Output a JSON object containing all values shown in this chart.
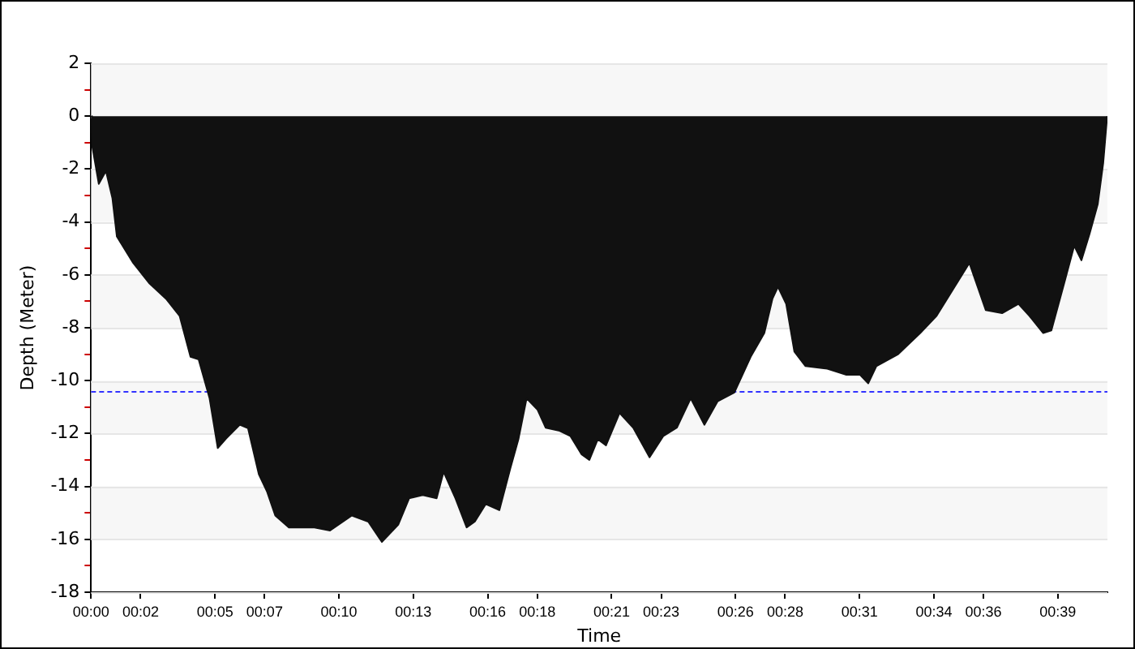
{
  "chart_data": {
    "type": "area",
    "xlabel": "Time",
    "ylabel": "Depth (Meter)",
    "x": [
      0,
      0.04,
      0.31,
      0.6,
      0.86,
      1.04,
      1.7,
      2.36,
      3.02,
      3.57,
      4.01,
      4.34,
      4.78,
      5.11,
      5.44,
      6.0,
      6.33,
      6.77,
      7.1,
      7.43,
      7.98,
      8.97,
      9.64,
      10.52,
      11.18,
      11.73,
      12.39,
      12.83,
      13.38,
      13.94,
      14.22,
      14.7,
      15.15,
      15.48,
      15.92,
      16.47,
      16.91,
      17.24,
      17.57,
      18.01,
      18.34,
      18.9,
      19.34,
      19.78,
      20.1,
      20.44,
      20.77,
      21.32,
      21.87,
      22.53,
      23.08,
      23.63,
      24.19,
      24.74,
      25.28,
      25.95,
      26.61,
      27.16,
      27.49,
      27.71,
      28.04,
      28.37,
      28.82,
      29.7,
      30.47,
      31.02,
      31.35,
      31.68,
      32.56,
      33.45,
      34.11,
      34.77,
      35.43,
      36.09,
      36.75,
      37.41,
      37.85,
      38.41,
      38.74,
      39.29,
      39.66,
      39.95,
      40.28,
      40.61,
      40.83,
      40.99
    ],
    "series": [
      {
        "color": "#111111",
        "values": [
          0,
          -1.1,
          -2.56,
          -2.07,
          -3.1,
          -4.55,
          -5.55,
          -6.33,
          -6.9,
          -7.55,
          -9.1,
          -9.2,
          -10.67,
          -12.55,
          -12.2,
          -11.67,
          -11.8,
          -13.55,
          -14.2,
          -15.1,
          -15.55,
          -15.55,
          -15.67,
          -15.1,
          -15.33,
          -16.1,
          -15.45,
          -14.45,
          -14.33,
          -14.45,
          -13.45,
          -14.45,
          -15.55,
          -15.33,
          -14.67,
          -14.9,
          -13.33,
          -12.22,
          -10.67,
          -11.1,
          -11.78,
          -11.9,
          -12.1,
          -12.78,
          -13.0,
          -12.22,
          -12.45,
          -11.22,
          -11.78,
          -12.9,
          -12.1,
          -11.78,
          -10.67,
          -11.67,
          -10.78,
          -10.45,
          -9.1,
          -8.2,
          -6.9,
          -6.45,
          -7.1,
          -8.9,
          -9.45,
          -9.55,
          -9.78,
          -9.78,
          -10.1,
          -9.45,
          -9.0,
          -8.2,
          -7.55,
          -6.55,
          -5.55,
          -7.33,
          -7.45,
          -7.1,
          -7.55,
          -8.2,
          -8.1,
          -6.2,
          -4.9,
          -5.45,
          -4.45,
          -3.33,
          -1.78,
          0
        ]
      }
    ],
    "xlim": [
      0,
      41
    ],
    "xticks": [
      {
        "value": 0,
        "label": "00:00"
      },
      {
        "value": 2,
        "label": "00:02"
      },
      {
        "value": 5,
        "label": "00:05"
      },
      {
        "value": 7,
        "label": "00:07"
      },
      {
        "value": 10,
        "label": "00:10"
      },
      {
        "value": 13,
        "label": "00:13"
      },
      {
        "value": 16,
        "label": "00:16"
      },
      {
        "value": 18,
        "label": "00:18"
      },
      {
        "value": 21,
        "label": "00:21"
      },
      {
        "value": 23,
        "label": "00:23"
      },
      {
        "value": 26,
        "label": "00:26"
      },
      {
        "value": 28,
        "label": "00:28"
      },
      {
        "value": 31,
        "label": "00:31"
      },
      {
        "value": 34,
        "label": "00:34"
      },
      {
        "value": 36,
        "label": "00:36"
      },
      {
        "value": 39,
        "label": "00:39"
      }
    ],
    "ylim": [
      -18,
      2
    ],
    "yticks": [
      2,
      {
        "value": 1,
        "label": null
      },
      0,
      {
        "value": -1,
        "label": null
      },
      -2,
      {
        "value": -3,
        "label": null
      },
      -4,
      {
        "value": -5,
        "label": null
      },
      -6,
      {
        "value": -7,
        "label": null
      },
      -8,
      {
        "value": -9,
        "label": null
      },
      -10,
      {
        "value": -11,
        "label": null
      },
      -12,
      {
        "value": -13,
        "label": null
      },
      -14,
      {
        "value": -15,
        "label": null
      },
      -16,
      {
        "value": -17,
        "label": null
      },
      -18
    ],
    "ref_lines": [
      {
        "axis": "y",
        "value": -10.4,
        "color": "#3333ff",
        "line_style": "dashed"
      }
    ],
    "grid": "y",
    "legend": false,
    "marker": "none"
  }
}
